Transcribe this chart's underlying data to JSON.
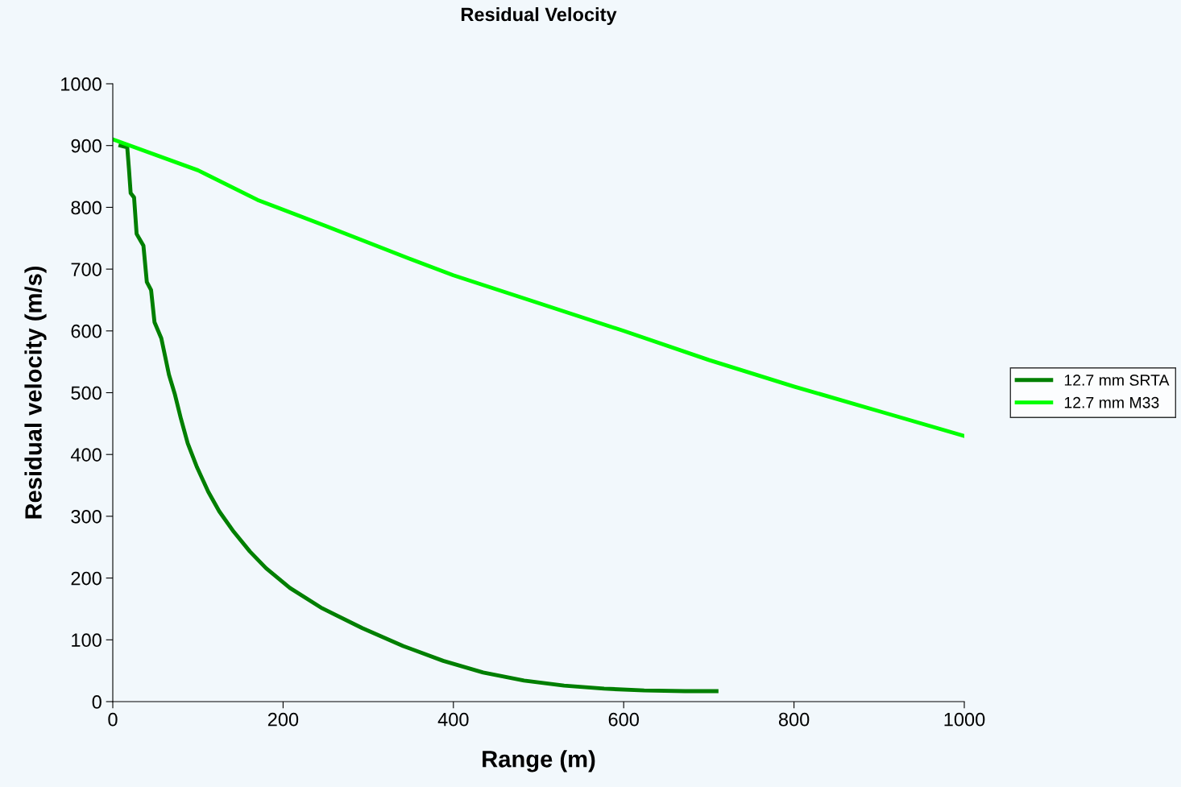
{
  "chart_data": {
    "type": "line",
    "title": "Residual Velocity",
    "xlabel": "Range (m)",
    "ylabel": "Residual velocity (m/s)",
    "xlim": [
      0,
      1000
    ],
    "xticks": [
      0,
      200,
      400,
      600,
      800,
      1000
    ],
    "ylim": [
      0,
      1000
    ],
    "yticks": [
      0,
      100,
      200,
      300,
      400,
      500,
      600,
      700,
      800,
      900,
      1000
    ],
    "grid": false,
    "legend": "right",
    "marker": "none",
    "line_style": "solid",
    "series": [
      {
        "name": "12.7 mm SRTA",
        "color": "#007f00",
        "x": [
          9,
          17,
          19,
          21,
          25,
          28,
          36,
          40,
          45,
          49,
          57,
          61,
          66,
          73,
          80,
          88,
          99,
          112,
          125,
          142,
          161,
          180,
          208,
          246,
          293,
          341,
          388,
          435,
          483,
          530,
          577,
          624,
          672,
          709
        ],
        "values": [
          900,
          897,
          862,
          823,
          816,
          757,
          738,
          679,
          666,
          614,
          588,
          562,
          529,
          497,
          458,
          418,
          379,
          340,
          308,
          275,
          243,
          216,
          184,
          151,
          119,
          90,
          66,
          47,
          34,
          26,
          21,
          18,
          17,
          17
        ]
      },
      {
        "name": "12.7 mm M33",
        "color": "#00ff00",
        "x": [
          0,
          100,
          170,
          250,
          350,
          400,
          500,
          600,
          700,
          800,
          900,
          1000
        ],
        "values": [
          910,
          860,
          812,
          770,
          716,
          690,
          645,
          600,
          553,
          510,
          470,
          430
        ]
      }
    ]
  }
}
